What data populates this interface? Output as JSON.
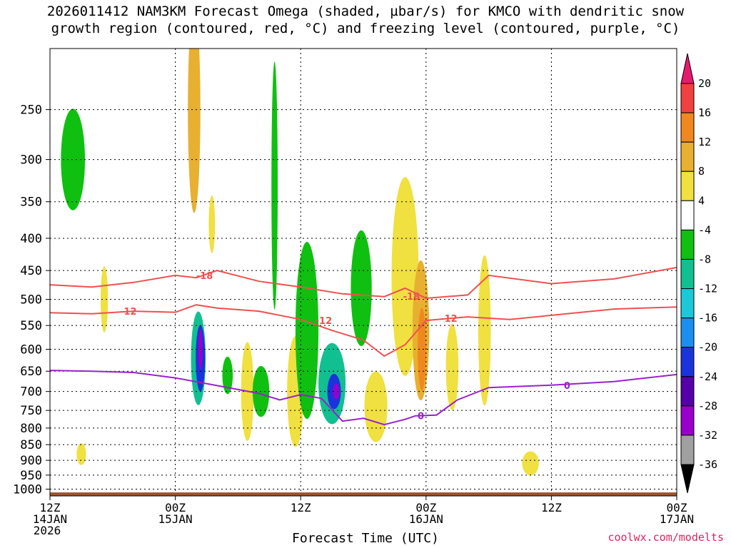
{
  "title": {
    "line1": "2026011412 NAM3KM Forecast Omega (shaded, µbar/s) for KMCO with dendritic snow",
    "line2": "growth region (contoured, red, °C) and freezing level (contoured, purple, °C)"
  },
  "credit": "coolwx.com/modelts",
  "chart_data": {
    "type": "heatmap",
    "title": "2026011412 NAM3KM Forecast Omega (shaded, µbar/s) for KMCO with dendritic snow growth region (contoured, red, °C) and freezing level (contoured, purple, °C)",
    "xlabel": "Forecast Time (UTC)",
    "ylabel": "",
    "x_ticks": [
      {
        "hour": 0,
        "label1": "12Z",
        "label2": "14JAN",
        "label3": "2026"
      },
      {
        "hour": 12,
        "label1": "00Z",
        "label2": "15JAN",
        "label3": ""
      },
      {
        "hour": 24,
        "label1": "12Z",
        "label2": "",
        "label3": ""
      },
      {
        "hour": 36,
        "label1": "00Z",
        "label2": "16JAN",
        "label3": ""
      },
      {
        "hour": 48,
        "label1": "12Z",
        "label2": "",
        "label3": ""
      },
      {
        "hour": 60,
        "label1": "00Z",
        "label2": "17JAN",
        "label3": ""
      }
    ],
    "xlim_hours": [
      0,
      60
    ],
    "y_ticks": [
      250,
      300,
      350,
      400,
      450,
      500,
      550,
      600,
      650,
      700,
      750,
      800,
      850,
      900,
      950,
      1000
    ],
    "ylim_hpa": [
      1025,
      200
    ],
    "y_scale": "log",
    "grid": true,
    "colorbar": {
      "labels": [
        "20",
        "16",
        "12",
        "8",
        "4",
        "-4",
        "-8",
        "-12",
        "-16",
        "-20",
        "-24",
        "-28",
        "-32",
        "-36"
      ],
      "levels": [
        -36,
        -32,
        -28,
        -24,
        -20,
        -16,
        -12,
        -8,
        -4,
        4,
        8,
        12,
        16,
        20
      ],
      "colors": [
        "#000000",
        "#a0a0a0",
        "#9900cc",
        "#5500aa",
        "#1a33dd",
        "#1a8ff0",
        "#1ac8d8",
        "#10c090",
        "#10c010",
        "#ffffff",
        "#f0e040",
        "#e8b030",
        "#f08820",
        "#f04040",
        "#e81a6e"
      ]
    },
    "shaded_cells": [
      {
        "x": 2.2,
        "p": 300,
        "w": 2.3,
        "h": 110,
        "value": -6
      },
      {
        "x": 3.0,
        "p": 880,
        "w": 0.9,
        "h": 70,
        "value": 6
      },
      {
        "x": 5.2,
        "p": 500,
        "w": 0.7,
        "h": 120,
        "value": 5
      },
      {
        "x": 13.8,
        "p": 250,
        "w": 1.2,
        "h": 180,
        "value": 8
      },
      {
        "x": 14.2,
        "p": 620,
        "w": 1.4,
        "h": 210,
        "value": -10
      },
      {
        "x": 14.4,
        "p": 620,
        "w": 0.9,
        "h": 150,
        "value": -22
      },
      {
        "x": 14.4,
        "p": 600,
        "w": 0.4,
        "h": 90,
        "value": -30
      },
      {
        "x": 15.5,
        "p": 380,
        "w": 0.6,
        "h": 80,
        "value": 5
      },
      {
        "x": 17.0,
        "p": 660,
        "w": 1.0,
        "h": 90,
        "value": -6
      },
      {
        "x": 18.9,
        "p": 700,
        "w": 1.2,
        "h": 250,
        "value": 5
      },
      {
        "x": 20.2,
        "p": 700,
        "w": 1.6,
        "h": 130,
        "value": -8
      },
      {
        "x": 21.5,
        "p": 330,
        "w": 0.6,
        "h": 280,
        "value": -6
      },
      {
        "x": 23.5,
        "p": 700,
        "w": 1.6,
        "h": 280,
        "value": 5
      },
      {
        "x": 24.6,
        "p": 560,
        "w": 2.2,
        "h": 350,
        "value": -6
      },
      {
        "x": 27.0,
        "p": 680,
        "w": 2.6,
        "h": 200,
        "value": -12
      },
      {
        "x": 27.2,
        "p": 700,
        "w": 1.3,
        "h": 90,
        "value": -24
      },
      {
        "x": 27.4,
        "p": 700,
        "w": 0.6,
        "h": 40,
        "value": -32
      },
      {
        "x": 29.8,
        "p": 480,
        "w": 2.0,
        "h": 200,
        "value": -6
      },
      {
        "x": 31.2,
        "p": 740,
        "w": 2.2,
        "h": 190,
        "value": 5
      },
      {
        "x": 34.0,
        "p": 460,
        "w": 2.6,
        "h": 320,
        "value": 5
      },
      {
        "x": 35.5,
        "p": 560,
        "w": 1.6,
        "h": 280,
        "value": 10
      },
      {
        "x": 35.6,
        "p": 600,
        "w": 0.8,
        "h": 180,
        "value": 14
      },
      {
        "x": 38.5,
        "p": 640,
        "w": 1.2,
        "h": 200,
        "value": 5
      },
      {
        "x": 41.6,
        "p": 560,
        "w": 1.2,
        "h": 300,
        "value": 5
      },
      {
        "x": 46.0,
        "p": 910,
        "w": 1.6,
        "h": 80,
        "value": 5
      }
    ],
    "series": [
      {
        "name": "-18",
        "color": "#f05050",
        "x": [
          0,
          4,
          8,
          12,
          14,
          16,
          20,
          24,
          28,
          32,
          34,
          36,
          40,
          42,
          48,
          54,
          60
        ],
        "y": [
          474,
          478,
          470,
          458,
          462,
          450,
          468,
          478,
          490,
          495,
          480,
          498,
          492,
          458,
          472,
          464,
          445
        ]
      },
      {
        "name": "-12",
        "color": "#f05050",
        "x": [
          0,
          4,
          8,
          12,
          14,
          16,
          20,
          24,
          27,
          30,
          32,
          34,
          36,
          40,
          44,
          48,
          54,
          60
        ],
        "y": [
          525,
          527,
          522,
          524,
          510,
          516,
          522,
          538,
          560,
          580,
          615,
          590,
          540,
          533,
          538,
          530,
          518,
          514
        ]
      },
      {
        "name": "0",
        "color": "#9922cc",
        "x": [
          0,
          4,
          8,
          12,
          16,
          20,
          22,
          24,
          26,
          28,
          30,
          32,
          34,
          35,
          37,
          39,
          42,
          48,
          54,
          60
        ],
        "y": [
          648,
          650,
          653,
          666,
          685,
          705,
          722,
          708,
          718,
          780,
          772,
          790,
          775,
          765,
          763,
          722,
          690,
          684,
          675,
          658
        ]
      }
    ],
    "contour_labels": [
      {
        "text": "-18",
        "x": 14.8,
        "p": 458,
        "color": "#f05050"
      },
      {
        "text": "-18",
        "x": 34.6,
        "p": 494,
        "color": "#f05050"
      },
      {
        "text": "-12",
        "x": 7.5,
        "p": 522,
        "color": "#f05050"
      },
      {
        "text": "-12",
        "x": 26.2,
        "p": 540,
        "color": "#f05050"
      },
      {
        "text": "-12",
        "x": 38.2,
        "p": 536,
        "color": "#f05050"
      },
      {
        "text": "0",
        "x": 49.5,
        "p": 684,
        "color": "#9922cc"
      },
      {
        "text": "0",
        "x": 35.5,
        "p": 765,
        "color": "#9922cc"
      }
    ],
    "terrain": {
      "color": "#a0522d",
      "p_top": 1012
    }
  }
}
